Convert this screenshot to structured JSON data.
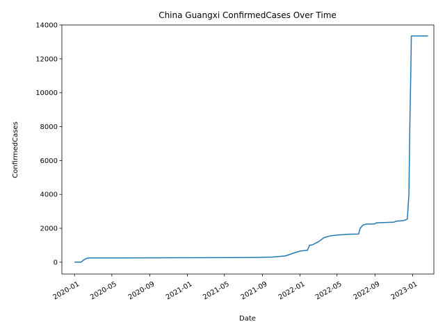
{
  "chart_data": {
    "type": "line",
    "title": "China Guangxi ConfirmedCases Over Time",
    "xlabel": "Date",
    "ylabel": "ConfirmedCases",
    "xlim": [
      "2019-11-21",
      "2023-03-11"
    ],
    "ylim": [
      -700,
      14000
    ],
    "x_ticks": [
      "2020-01",
      "2020-05",
      "2020-09",
      "2021-01",
      "2021-05",
      "2021-09",
      "2022-01",
      "2022-05",
      "2022-09",
      "2023-01"
    ],
    "y_ticks": [
      0,
      2000,
      4000,
      6000,
      8000,
      10000,
      12000,
      14000
    ],
    "grid": false,
    "legend": "none",
    "line_color": "#1f77b4",
    "series": [
      {
        "x": [
          "2020-01-01",
          "2020-01-22",
          "2020-02-01",
          "2020-02-10",
          "2020-02-20",
          "2020-03-10",
          "2020-06-01",
          "2020-09-01",
          "2021-01-01",
          "2021-04-01",
          "2021-07-01",
          "2021-08-15",
          "2021-10-01",
          "2021-11-15",
          "2021-12-15",
          "2022-01-01",
          "2022-01-20",
          "2022-01-25",
          "2022-02-01",
          "2022-02-10",
          "2022-03-01",
          "2022-03-20",
          "2022-04-10",
          "2022-05-01",
          "2022-05-15",
          "2022-06-10",
          "2022-07-10",
          "2022-07-15",
          "2022-07-25",
          "2022-08-05",
          "2022-09-01",
          "2022-09-05",
          "2022-10-01",
          "2022-11-01",
          "2022-11-10",
          "2022-12-01",
          "2022-12-10",
          "2022-12-15",
          "2022-12-20",
          "2022-12-23",
          "2022-12-26",
          "2022-12-28",
          "2023-01-05",
          "2023-02-20"
        ],
        "y": [
          0,
          0,
          150,
          230,
          250,
          250,
          252,
          255,
          262,
          268,
          272,
          280,
          300,
          370,
          560,
          650,
          700,
          700,
          1000,
          1020,
          1200,
          1450,
          1560,
          1600,
          1620,
          1650,
          1660,
          2000,
          2200,
          2250,
          2260,
          2320,
          2340,
          2360,
          2420,
          2450,
          2500,
          2550,
          4000,
          8000,
          11000,
          13350,
          13350,
          13350
        ]
      }
    ]
  }
}
